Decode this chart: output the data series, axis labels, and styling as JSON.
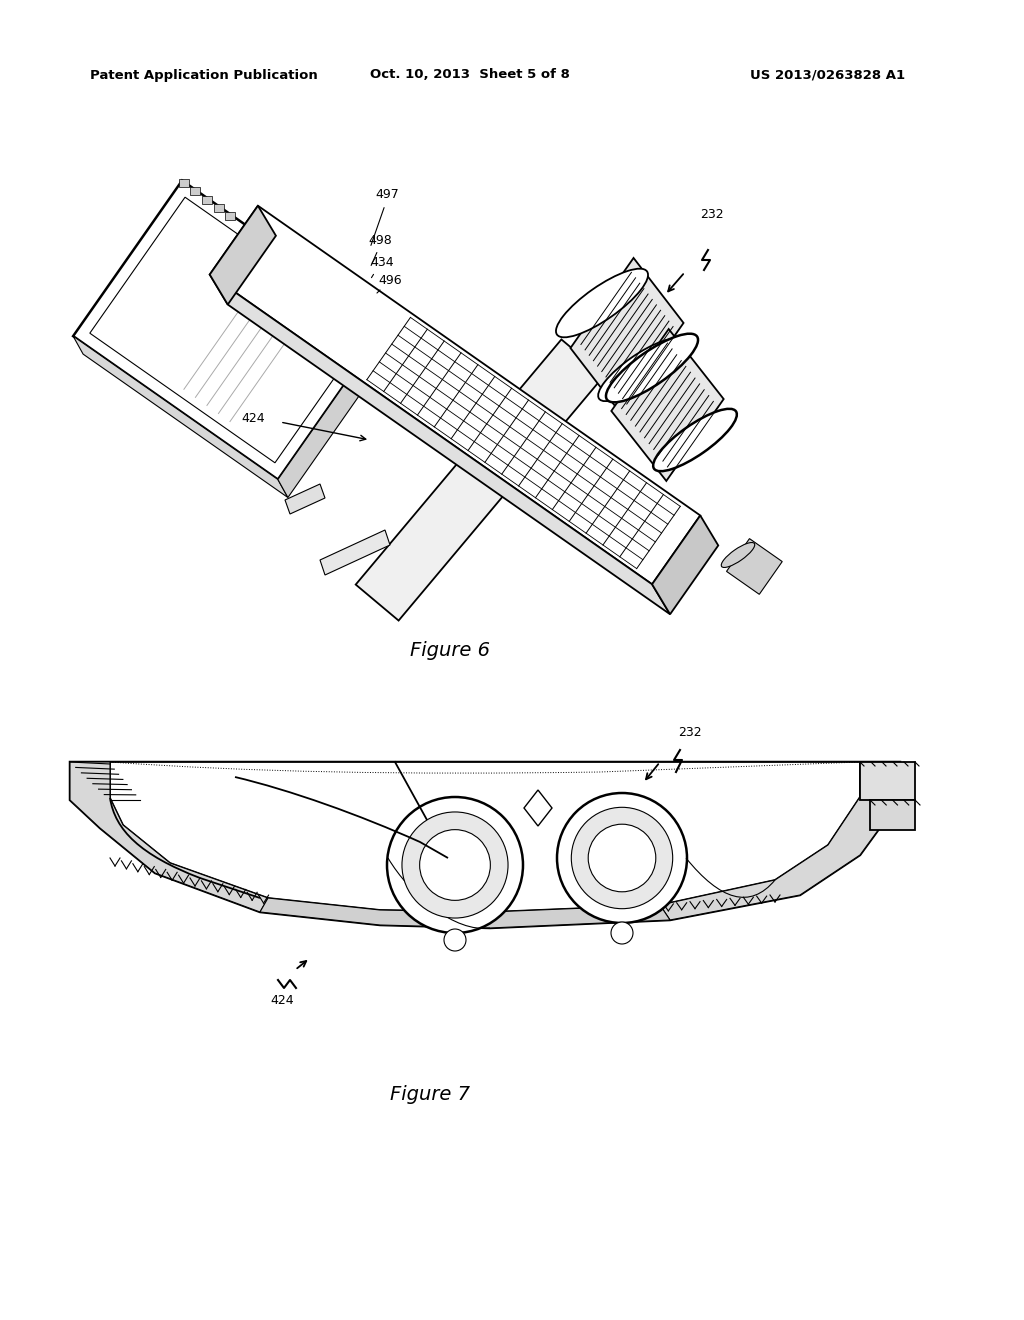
{
  "background_color": "#ffffff",
  "header_left": "Patent Application Publication",
  "header_center": "Oct. 10, 2013  Sheet 5 of 8",
  "header_right": "US 2013/0263828 A1",
  "fig6_caption": "Figure 6",
  "fig7_caption": "Figure 7",
  "label_fontsize": 9,
  "caption_fontsize": 14,
  "header_fontsize": 9.5
}
